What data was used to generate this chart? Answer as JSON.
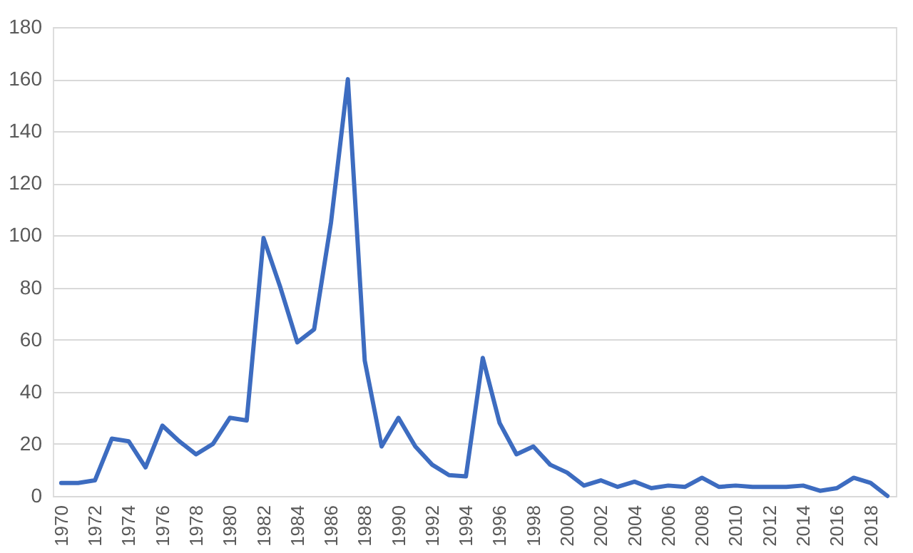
{
  "chart_data": {
    "type": "line",
    "x": [
      1970,
      1971,
      1972,
      1973,
      1974,
      1975,
      1976,
      1977,
      1978,
      1979,
      1980,
      1981,
      1982,
      1983,
      1984,
      1985,
      1986,
      1987,
      1988,
      1989,
      1990,
      1991,
      1992,
      1993,
      1994,
      1995,
      1996,
      1997,
      1998,
      1999,
      2000,
      2001,
      2002,
      2003,
      2004,
      2005,
      2006,
      2007,
      2008,
      2009,
      2010,
      2011,
      2012,
      2013,
      2014,
      2015,
      2016,
      2017,
      2018,
      2019
    ],
    "series": [
      {
        "color": "#3d6cc0",
        "values": [
          5,
          5,
          6,
          22,
          21,
          11,
          27,
          21,
          16,
          20,
          30,
          29,
          99,
          80,
          59,
          64,
          105,
          160,
          52,
          19,
          30,
          19,
          12,
          8,
          7.5,
          53,
          28,
          16,
          19,
          12,
          9,
          4,
          6,
          3.5,
          5.5,
          3,
          4,
          3.5,
          7,
          3.5,
          4,
          3.5,
          3.5,
          3.5,
          4,
          2,
          3,
          7,
          5,
          0
        ]
      }
    ],
    "xlim": [
      1969.5,
      2019.5
    ],
    "xticks": [
      1970,
      1972,
      1974,
      1976,
      1978,
      1980,
      1982,
      1984,
      1986,
      1988,
      1990,
      1992,
      1994,
      1996,
      1998,
      2000,
      2002,
      2004,
      2006,
      2008,
      2010,
      2012,
      2014,
      2016,
      2018
    ],
    "ylim": [
      0,
      180
    ],
    "yticks": [
      0,
      20,
      40,
      60,
      80,
      100,
      120,
      140,
      160,
      180
    ],
    "grid": "y",
    "marker": "none",
    "line_style": "solid"
  }
}
